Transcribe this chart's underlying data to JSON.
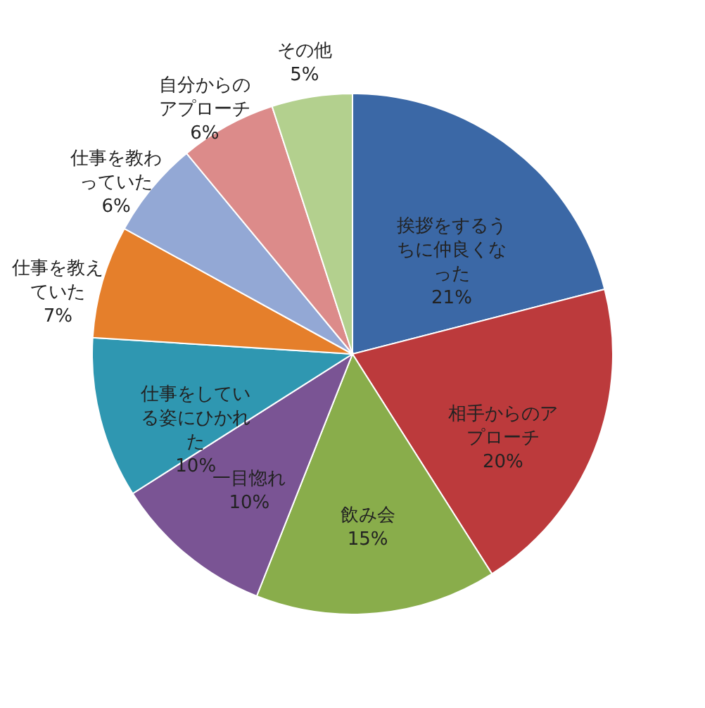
{
  "chart_data": {
    "type": "pie",
    "categories": [
      "挨拶をするうちに仲良くなった",
      "相手からのアプローチ",
      "飲み会",
      "一目惚れ",
      "仕事をしている姿にひかれた",
      "仕事を教えていた",
      "仕事を教わっていた",
      "自分からのアプローチ",
      "その他"
    ],
    "values": [
      21,
      20,
      15,
      10,
      10,
      7,
      6,
      6,
      5
    ],
    "value_labels": [
      "21%",
      "20%",
      "15%",
      "10%",
      "10%",
      "7%",
      "6%",
      "6%",
      "5%"
    ],
    "colors": [
      "#3b68a6",
      "#bc3a3c",
      "#89ad4b",
      "#7a5494",
      "#2f97b1",
      "#e57f2b",
      "#93a8d5",
      "#dc8b8a",
      "#b3d08e"
    ]
  }
}
